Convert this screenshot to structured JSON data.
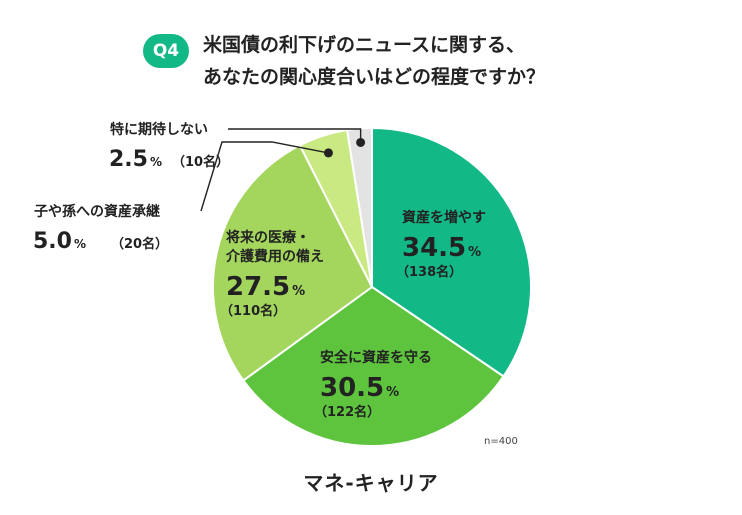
{
  "header": {
    "question_badge": "Q4",
    "title_line1": "米国債の利下げのニュースに関する、",
    "title_line2": "あなたの関心度合いはどの程度ですか？"
  },
  "sample_size": "n=400",
  "logo_text": "マネ-キャリア",
  "chart_data": {
    "type": "pie",
    "title": "米国債の利下げのニュースに関する、あなたの関心度合いはどの程度ですか？",
    "slices": [
      {
        "label": "資産を増やす",
        "value": 34.5,
        "value_label": "34.5",
        "count_label": "（138名）",
        "color": "#12b886"
      },
      {
        "label": "安全に資産を守る",
        "value": 30.5,
        "value_label": "30.5",
        "count_label": "（122名）",
        "color": "#5ec43e"
      },
      {
        "label": "将来の医療・介護費用の備え",
        "label_lines": [
          "将来の医療・",
          "介護費用の備え"
        ],
        "value": 27.5,
        "value_label": "27.5",
        "count_label": "（110名）",
        "color": "#a4d65e"
      },
      {
        "label": "子や孫への資産承継",
        "value": 5.0,
        "value_label": "5.0",
        "count_label": "（20名）",
        "color": "#c9ea82"
      },
      {
        "label": "特に期待しない",
        "value": 2.5,
        "value_label": "2.5",
        "count_label": "（10名）",
        "color": "#e3e3e3"
      }
    ],
    "unit": "%"
  }
}
